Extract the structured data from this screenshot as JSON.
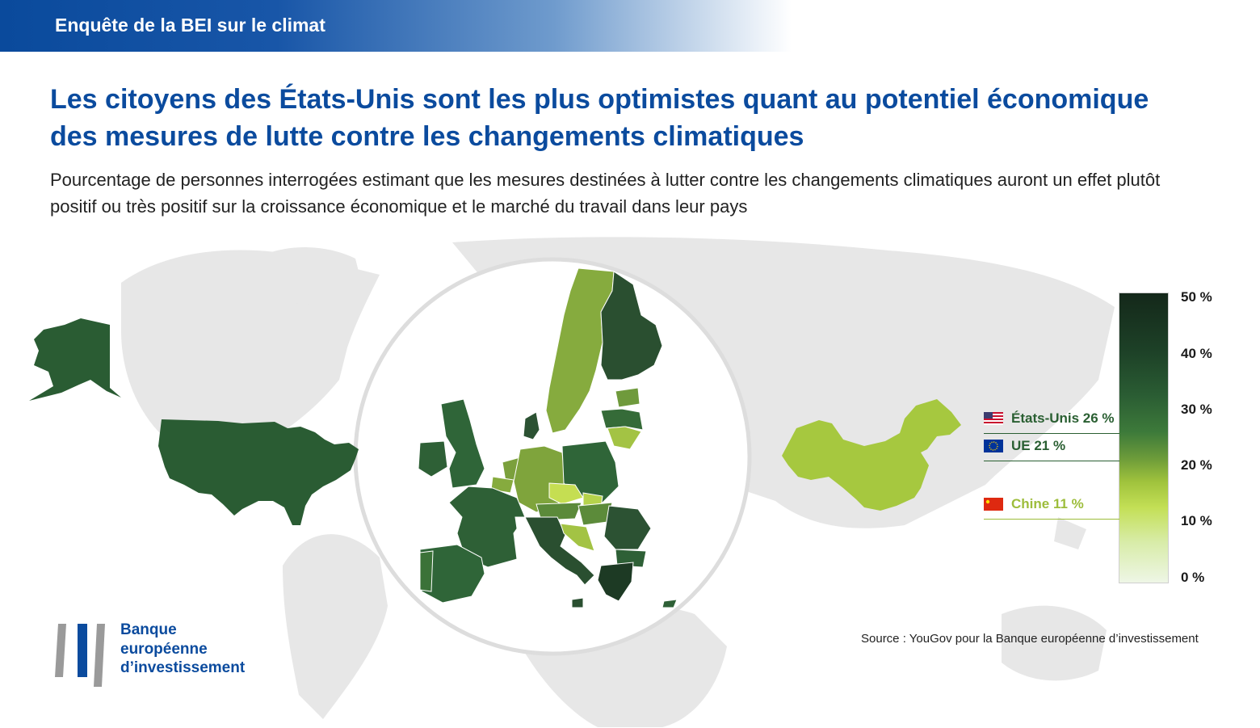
{
  "header": {
    "title": "Enquête de la BEI sur le climat"
  },
  "title": "Les citoyens des États-Unis sont les plus optimistes quant au potentiel économique des mesures de lutte contre les changements climatiques",
  "subtitle": "Pourcentage de personnes interrogées estimant que les mesures destinées à lutter contre les changements climatiques auront un effet plutôt positif ou très positif sur la croissance économique et le marché du travail dans leur pays",
  "legend": {
    "ticks": [
      "50 %",
      "40 %",
      "30 %",
      "20 %",
      "10 %",
      "0 %"
    ],
    "markers": [
      {
        "label": "États-Unis 26 %",
        "value": 26,
        "color": "#2a5f32",
        "flag": "us-flag-icon"
      },
      {
        "label": "UE 21 %",
        "value": 21,
        "color": "#2a5f32",
        "flag": "eu-flag-icon"
      },
      {
        "label": "Chine 11 %",
        "value": 11,
        "color": "#9dbd3b",
        "flag": "china-flag-icon"
      }
    ]
  },
  "source": "Source : YouGov pour la Banque européenne d’investissement",
  "logo": {
    "lines": [
      "Banque",
      "européenne",
      "d’investissement"
    ]
  },
  "colors": {
    "brand_blue": "#0b4b9e",
    "us_fill": "#2a5c33",
    "china_fill": "#a6c83f",
    "world_land": "#e6e6e6"
  }
}
